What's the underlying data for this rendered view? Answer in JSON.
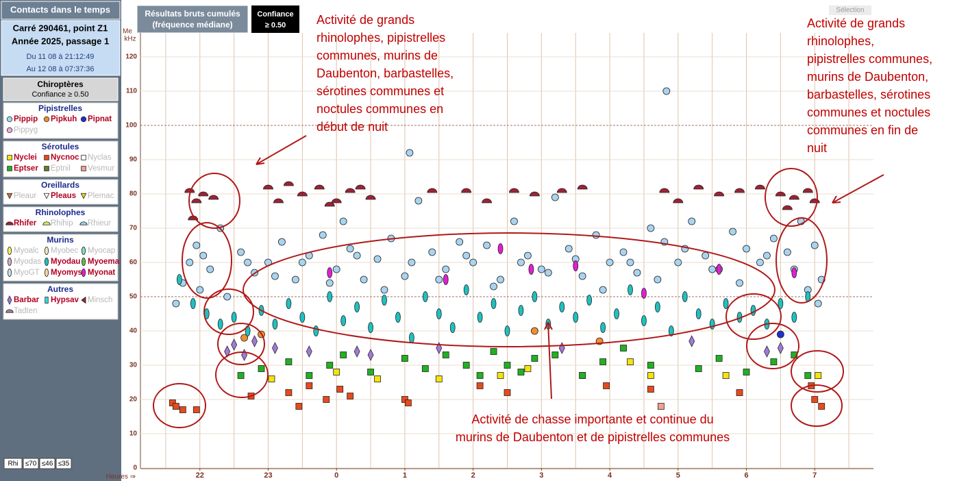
{
  "sidebar": {
    "title": "Contacts dans le temps",
    "info": [
      "Carré 290461, point Z1",
      "Année 2025, passage 1",
      "Du 11 08 à 21:12:49",
      "Au 12 08 à 07:37:36"
    ],
    "chiro_title": "Chiroptères",
    "chiro_conf": "Confiance ≥ 0.50",
    "footer_buttons": [
      "Rhi",
      "≤70",
      "≤46",
      "≤35"
    ]
  },
  "toolbar": {
    "results": [
      "Résultats bruts cumulés",
      "(fréquence médiane)"
    ],
    "confidence": [
      "Confiance",
      "≥ 0.50"
    ],
    "selection": "Sélection"
  },
  "chart_data": {
    "type": "scatter",
    "y_label": [
      "Me",
      "kHz"
    ],
    "x_label": "Heures ⇒",
    "xlim": [
      21.13,
      31.86
    ],
    "ylim": [
      0,
      127
    ],
    "xticks": [
      22,
      23,
      {
        "value": 24,
        "label": "0"
      },
      {
        "value": 25,
        "label": "1"
      },
      {
        "value": 26,
        "label": "2"
      },
      {
        "value": 27,
        "label": "3"
      },
      {
        "value": 28,
        "label": "4"
      },
      {
        "value": 29,
        "label": "5"
      },
      {
        "value": 30,
        "label": "6"
      },
      {
        "value": 31,
        "label": "7"
      }
    ],
    "xgrid": [
      21.5,
      22,
      22.5,
      23,
      23.5,
      24,
      24.5,
      25,
      25.5,
      26,
      26.5,
      27,
      27.5,
      28,
      28.5,
      29,
      29.5,
      30,
      30.5,
      31,
      31.5
    ],
    "yticks": [
      0,
      10,
      20,
      30,
      40,
      50,
      60,
      70,
      80,
      90,
      100,
      110,
      120
    ],
    "major_yticks": [
      50,
      100
    ],
    "grid": true,
    "groups": [
      {
        "title": "Pipistrelles",
        "series": [
          {
            "name": "Pippip",
            "shape": "circle",
            "color": "#a9d4f0",
            "active": true,
            "x": [
              21.65,
              21.75,
              21.85,
              21.95,
              22.05,
              22.15,
              22.3,
              22.6,
              22.8,
              23.0,
              23.2,
              23.4,
              23.6,
              23.8,
              24.0,
              24.2,
              24.4,
              24.6,
              24.8,
              25.0,
              25.2,
              25.4,
              25.6,
              25.8,
              26.0,
              26.2,
              26.4,
              26.6,
              26.8,
              27.0,
              27.2,
              27.4,
              27.6,
              27.8,
              28.0,
              28.2,
              28.4,
              28.6,
              28.8,
              29.0,
              29.2,
              29.4,
              29.6,
              29.8,
              30.0,
              30.2,
              30.4,
              30.6,
              30.8,
              31.0,
              31.1,
              25.07,
              28.83,
              24.1,
              22.0,
              22.4,
              22.7,
              23.1,
              23.5,
              23.9,
              24.3,
              24.7,
              25.1,
              25.5,
              25.9,
              26.3,
              26.7,
              27.1,
              27.5,
              27.9,
              28.3,
              28.7,
              29.1,
              29.5,
              29.9,
              30.3,
              30.7,
              30.9,
              31.05
            ],
            "y": [
              48,
              54,
              60,
              65,
              62,
              58,
              70,
              63,
              57,
              60,
              66,
              55,
              62,
              68,
              58,
              64,
              55,
              61,
              67,
              56,
              78,
              63,
              58,
              66,
              60,
              65,
              55,
              72,
              62,
              58,
              79,
              64,
              56,
              68,
              60,
              63,
              57,
              70,
              66,
              60,
              72,
              62,
              58,
              69,
              64,
              60,
              67,
              63,
              72,
              65,
              55,
              92,
              110,
              72,
              52,
              50,
              60,
              56,
              60,
              54,
              62,
              52,
              60,
              55,
              62,
              53,
              60,
              57,
              61,
              52,
              60,
              55,
              64,
              58,
              54,
              62,
              58,
              52,
              48
            ]
          },
          {
            "name": "Pipkuh",
            "shape": "circle",
            "color": "#f09030",
            "active": true,
            "x": [
              22.65,
              22.9,
              26.9,
              27.85
            ],
            "y": [
              38,
              39,
              40,
              37
            ]
          },
          {
            "name": "Pipnat",
            "shape": "circle",
            "color": "#2030d0",
            "active": true,
            "x": [
              30.5
            ],
            "y": [
              39
            ]
          },
          {
            "name": "Pippyg",
            "shape": "circle",
            "color": "#e8b0d8",
            "active": false,
            "x": [],
            "y": []
          }
        ]
      },
      {
        "title": "Sérotules",
        "series": [
          {
            "name": "Nyclei",
            "shape": "square",
            "color": "#f4e40c",
            "active": true,
            "x": [
              23.05,
              24.0,
              24.6,
              25.5,
              26.4,
              26.8,
              27.6,
              28.3,
              28.6,
              29.7,
              31.05
            ],
            "y": [
              26,
              28,
              26,
              26,
              27,
              29,
              27,
              31,
              27,
              27,
              27
            ]
          },
          {
            "name": "Nycnoc",
            "shape": "square",
            "color": "#e84a1d",
            "active": true,
            "x": [
              21.6,
              21.65,
              21.75,
              21.95,
              22.75,
              23.3,
              23.45,
              23.6,
              23.85,
              24.05,
              24.2,
              25.0,
              25.05,
              26.1,
              26.5,
              27.95,
              28.6,
              29.9,
              30.95,
              31.0,
              31.1
            ],
            "y": [
              19,
              18,
              17,
              17,
              21,
              22,
              18,
              24,
              20,
              23,
              21,
              20,
              19,
              24,
              22,
              24,
              23,
              22,
              24,
              20,
              18
            ]
          },
          {
            "name": "Nyclas",
            "shape": "square",
            "color": "#ffffff",
            "active": false,
            "x": [],
            "y": []
          },
          {
            "name": "Eptser",
            "shape": "square",
            "color": "#21b121",
            "active": true,
            "x": [
              22.6,
              22.9,
              23.3,
              23.6,
              23.9,
              24.1,
              24.5,
              25.0,
              25.3,
              25.6,
              25.9,
              26.1,
              26.3,
              26.5,
              26.7,
              26.9,
              27.2,
              27.6,
              27.9,
              28.2,
              28.6,
              29.3,
              29.6,
              30.0,
              30.4,
              30.7,
              30.9
            ],
            "y": [
              27,
              29,
              31,
              27,
              30,
              33,
              28,
              32,
              29,
              33,
              30,
              27,
              34,
              30,
              28,
              32,
              33,
              27,
              31,
              35,
              30,
              29,
              32,
              28,
              31,
              33,
              27
            ]
          },
          {
            "name": "Eptnil",
            "shape": "square",
            "color": "#6b7a2a",
            "active": false,
            "x": [],
            "y": []
          },
          {
            "name": "Vesmur",
            "shape": "square",
            "color": "#f0a090",
            "active": false,
            "x": [
              28.75
            ],
            "y": [
              18
            ]
          }
        ]
      },
      {
        "title": "Oreillards",
        "series": [
          {
            "name": "Pleaur",
            "shape": "tri",
            "color": "#d0703a",
            "active": false,
            "x": [],
            "y": []
          },
          {
            "name": "Pleaus",
            "shape": "tri",
            "color": "#ffffff",
            "active": true,
            "x": [],
            "y": []
          },
          {
            "name": "Plemac",
            "shape": "tri",
            "color": "#e8d020",
            "active": false,
            "x": [],
            "y": []
          }
        ]
      },
      {
        "title": "Rhinolophes",
        "series": [
          {
            "name": "Rhifer",
            "shape": "dome",
            "color": "#9b2335",
            "active": true,
            "x": [
              21.85,
              21.95,
              22.05,
              22.2,
              21.9,
              23.0,
              23.15,
              23.3,
              23.5,
              23.75,
              23.9,
              24.0,
              24.2,
              24.35,
              24.5,
              25.4,
              25.9,
              26.2,
              26.6,
              26.9,
              27.3,
              27.6,
              28.8,
              29.0,
              29.3,
              29.6,
              29.9,
              30.2,
              30.5,
              30.7,
              30.9,
              31.0,
              30.6
            ],
            "y": [
              81,
              78,
              80,
              79,
              73,
              82,
              78,
              83,
              80,
              82,
              77,
              78,
              81,
              82,
              79,
              81,
              81,
              78,
              81,
              80,
              81,
              82,
              81,
              78,
              82,
              80,
              81,
              82,
              80,
              79,
              81,
              78,
              76
            ]
          },
          {
            "name": "Rhihip",
            "shape": "dome",
            "color": "#c8f060",
            "active": false,
            "x": [],
            "y": []
          },
          {
            "name": "Rhieur",
            "shape": "dome",
            "color": "#a0c8e8",
            "active": false,
            "x": [],
            "y": []
          }
        ]
      },
      {
        "title": "Murins",
        "series": [
          {
            "name": "Myoalc",
            "shape": "ell",
            "color": "#f4f060",
            "active": false,
            "x": [],
            "y": []
          },
          {
            "name": "Myobec",
            "shape": "ell",
            "color": "#f0e8c0",
            "active": false,
            "x": [],
            "y": []
          },
          {
            "name": "Myocap",
            "shape": "ell",
            "color": "#80e0c0",
            "active": false,
            "x": [],
            "y": []
          },
          {
            "name": "Myodas",
            "shape": "ell",
            "color": "#d0b0c0",
            "active": false,
            "x": [],
            "y": []
          },
          {
            "name": "Myodau",
            "shape": "ell",
            "color": "#20c0c0",
            "active": true,
            "x": [
              21.7,
              21.9,
              22.1,
              22.3,
              22.5,
              22.7,
              22.9,
              23.1,
              23.3,
              23.5,
              23.7,
              23.9,
              24.1,
              24.3,
              24.5,
              24.7,
              24.9,
              25.1,
              25.3,
              25.5,
              25.7,
              25.9,
              26.1,
              26.3,
              26.5,
              26.7,
              26.9,
              27.1,
              27.3,
              27.5,
              27.7,
              27.9,
              28.1,
              28.3,
              28.5,
              28.7,
              28.9,
              29.1,
              29.3,
              29.5,
              29.7,
              29.9,
              30.1,
              30.3,
              30.5,
              30.7,
              30.9
            ],
            "y": [
              55,
              48,
              45,
              42,
              44,
              40,
              46,
              42,
              48,
              44,
              40,
              50,
              43,
              47,
              41,
              49,
              44,
              38,
              50,
              45,
              41,
              52,
              44,
              48,
              40,
              46,
              50,
              42,
              47,
              44,
              49,
              41,
              45,
              52,
              43,
              47,
              40,
              50,
              45,
              42,
              48,
              44,
              46,
              42,
              48,
              44,
              50
            ]
          },
          {
            "name": "Myoema",
            "shape": "ell",
            "color": "#60c040",
            "active": true,
            "x": [],
            "y": []
          },
          {
            "name": "MyoGT",
            "shape": "ell",
            "color": "#c0e0f0",
            "active": false,
            "x": [],
            "y": []
          },
          {
            "name": "Myomys",
            "shape": "ell",
            "color": "#f0d8a0",
            "active": true,
            "x": [],
            "y": []
          },
          {
            "name": "Myonat",
            "shape": "ell",
            "color": "#e020d0",
            "active": true,
            "x": [
              23.9,
              25.6,
              26.4,
              26.85,
              27.5,
              28.5,
              29.6,
              30.7
            ],
            "y": [
              57,
              55,
              64,
              58,
              59,
              51,
              58,
              57
            ]
          }
        ]
      },
      {
        "title": "Autres",
        "series": [
          {
            "name": "Barbar",
            "shape": "diamond",
            "color": "#a27ad6",
            "active": true,
            "x": [
              22.4,
              22.5,
              22.65,
              22.8,
              23.1,
              23.6,
              24.3,
              24.5,
              25.5,
              27.3,
              29.2,
              30.3,
              30.5
            ],
            "y": [
              34,
              36,
              33,
              37,
              35,
              34,
              34,
              33,
              35,
              35,
              37,
              34,
              35
            ]
          },
          {
            "name": "Hypsav",
            "shape": "rect",
            "color": "#30e0e0",
            "active": true,
            "x": [],
            "y": []
          },
          {
            "name": "Minsch",
            "shape": "ltri",
            "color": "#a02030",
            "active": false,
            "x": [],
            "y": []
          },
          {
            "name": "Tadten",
            "shape": "dome",
            "color": "#a08090",
            "active": false,
            "x": [],
            "y": []
          }
        ]
      }
    ],
    "annotations": [
      {
        "lines": [
          "Activité de grands",
          "rhinolophes, pipistrelles",
          "communes, murins de",
          "Daubenton, barbastelles,",
          "sérotines communes et",
          "noctules communes en",
          "début de nuit"
        ]
      },
      {
        "lines": [
          "Activité de grands",
          "rhinolophes,",
          "pipistrelles communes,",
          "murins de Daubenton,",
          "barbastelles, sérotines",
          "communes et noctules",
          "communes en fin de",
          "nuit"
        ]
      },
      {
        "lines": [
          "Activité de chasse importante et continue du",
          "murins de Daubenton et de pipistrelles communes"
        ]
      }
    ]
  }
}
